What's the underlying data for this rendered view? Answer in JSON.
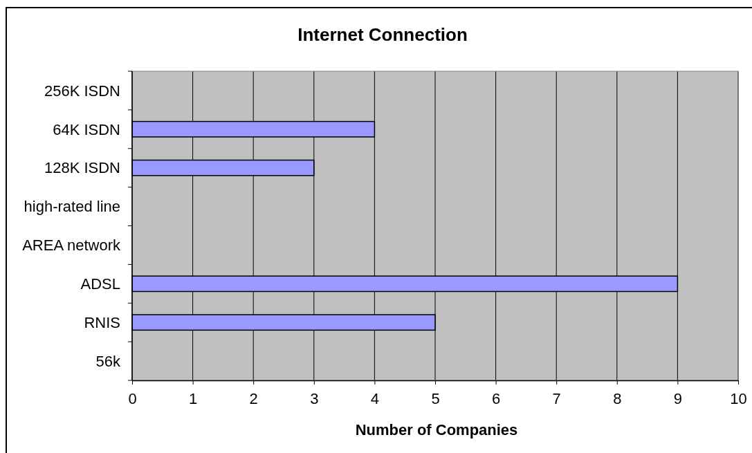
{
  "chart_data": {
    "type": "bar",
    "orientation": "horizontal",
    "title": "Internet Connection",
    "xlabel": "Number of Companies",
    "categories": [
      "256K ISDN",
      "64K ISDN",
      "128K ISDN",
      "high-rated line",
      "AREA network",
      "ADSL",
      "RNIS",
      "56k"
    ],
    "values": [
      0,
      4,
      3,
      0,
      0,
      9,
      5,
      0
    ],
    "color": "#9999ff",
    "xlim": [
      0,
      10
    ],
    "xticks": [
      0,
      1,
      2,
      3,
      4,
      5,
      6,
      7,
      8,
      9,
      10
    ],
    "grid": "x"
  }
}
